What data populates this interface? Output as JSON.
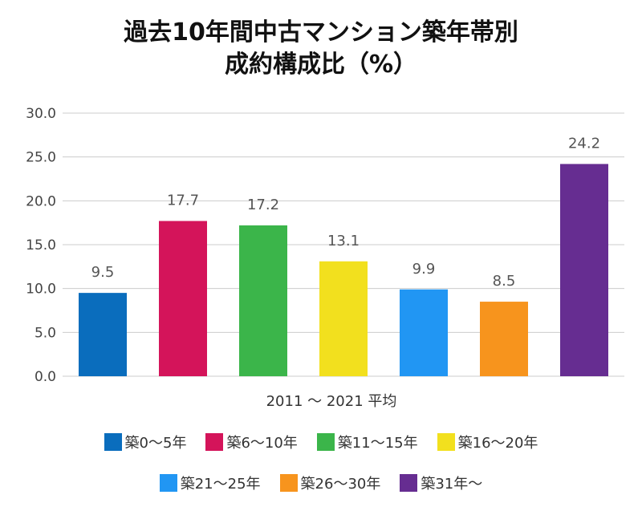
{
  "chart_data": {
    "type": "bar",
    "title_line1": "過去10年間中古マンション築年帯別",
    "title_line2": "成約構成比（%）",
    "xlabel": "2011 ～ 2021 平均",
    "ylabel": "",
    "ylim": [
      0,
      30
    ],
    "yticks": [
      "0.0",
      "5.0",
      "10.0",
      "15.0",
      "20.0",
      "25.0",
      "30.0"
    ],
    "grid": true,
    "legend_position": "bottom",
    "categories": [
      "築0～5年",
      "築6～10年",
      "築11～15年",
      "築16～20年",
      "築21～25年",
      "築26～30年",
      "築31年～"
    ],
    "values": [
      9.5,
      17.7,
      17.2,
      13.1,
      9.9,
      8.5,
      24.2
    ],
    "value_labels": [
      "9.5",
      "17.7",
      "17.2",
      "13.1",
      "9.9",
      "8.5",
      "24.2"
    ],
    "colors": [
      "#0a6dbd",
      "#d4145a",
      "#3bb54a",
      "#f2e01e",
      "#2196f3",
      "#f7941d",
      "#662d91"
    ]
  }
}
